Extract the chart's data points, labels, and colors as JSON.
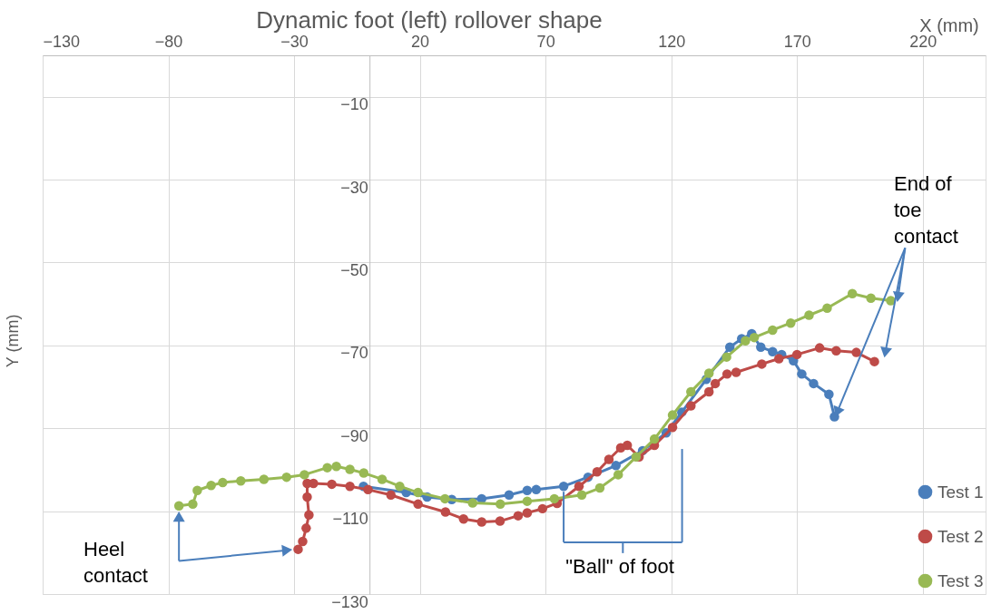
{
  "chart_data": {
    "type": "line",
    "title": "Dynamic foot (left) rollover shape",
    "xlabel": "X (mm)",
    "ylabel": "Y (mm)",
    "xlim": [
      -130,
      245
    ],
    "xticks": [
      -130,
      -80,
      -30,
      20,
      70,
      120,
      170,
      220
    ],
    "ylim": [
      -130,
      0
    ],
    "yticks": [
      -130,
      -110,
      -90,
      -70,
      -50,
      -30,
      -10
    ],
    "grid": true,
    "legend": "bottom right",
    "marker": "circle",
    "line_style": "solid",
    "annotations": [
      {
        "text": "End of toe contact",
        "x": 184.9,
        "y": -87.2
      },
      "Heel contact",
      {
        "text": "\"Ball\" of foot",
        "x": 77.2,
        "y": -104.0
      }
    ],
    "series": [
      {
        "name": "Test 1",
        "color": "#4a7ebb",
        "x": [
          -2.4,
          14.6,
          22.9,
          32.7,
          44.6,
          55.5,
          62.7,
          66.3,
          77.2,
          86.9,
          98.0,
          108.6,
          118.0,
          124.2,
          133.9,
          143.3,
          148.0,
          152.0,
          155.6,
          160.3,
          163.9,
          168.6,
          171.9,
          176.6,
          182.7,
          184.9
        ],
        "values": [
          -104.0,
          -105.5,
          -106.6,
          -107.2,
          -107.0,
          -106.1,
          -105.0,
          -104.8,
          -104.0,
          -101.8,
          -99.0,
          -95.4,
          -91.1,
          -86.1,
          -78.2,
          -70.4,
          -68.4,
          -67.2,
          -70.4,
          -71.5,
          -72.2,
          -73.7,
          -76.9,
          -79.2,
          -81.8,
          -87.2
        ]
      },
      {
        "name": "Test 2",
        "color": "#be4b48",
        "x": [
          -28.4,
          -26.6,
          -25.2,
          -24.1,
          -24.8,
          -24.8,
          -22.3,
          -15.0,
          -7.8,
          -0.6,
          8.5,
          19.3,
          30.2,
          37.4,
          44.6,
          51.9,
          59.1,
          62.7,
          68.8,
          74.6,
          83.3,
          90.5,
          95.2,
          99.9,
          102.5,
          107.2,
          113.3,
          120.5,
          127.8,
          135.0,
          137.5,
          142.2,
          145.8,
          156.0,
          162.8,
          170.0,
          179.0,
          185.6,
          193.6,
          200.8
        ],
        "values": [
          -119.2,
          -117.3,
          -114.1,
          -110.9,
          -106.6,
          -103.3,
          -103.3,
          -103.5,
          -104.0,
          -104.8,
          -106.1,
          -108.3,
          -110.2,
          -111.9,
          -112.6,
          -112.4,
          -111.1,
          -110.4,
          -109.4,
          -108.1,
          -104.0,
          -100.5,
          -97.5,
          -94.7,
          -94.1,
          -96.9,
          -94.1,
          -89.8,
          -84.6,
          -81.2,
          -79.2,
          -76.9,
          -76.5,
          -74.5,
          -73.2,
          -72.2,
          -70.6,
          -71.3,
          -71.7,
          -73.9
        ]
      },
      {
        "name": "Test 3",
        "color": "#98b954",
        "x": [
          -75.8,
          -70.3,
          -68.5,
          -63.0,
          -58.4,
          -51.2,
          -42.0,
          -33.0,
          -25.9,
          -16.8,
          -13.2,
          -7.8,
          -2.3,
          5.0,
          12.0,
          19.3,
          30.0,
          41.0,
          52.0,
          62.7,
          73.5,
          84.4,
          91.6,
          98.9,
          106.0,
          113.3,
          120.5,
          127.8,
          135.0,
          142.0,
          149.5,
          153.0,
          160.3,
          167.5,
          174.8,
          182.0,
          192.0,
          199.4,
          207.3
        ],
        "values": [
          -108.7,
          -108.3,
          -105.0,
          -103.8,
          -103.1,
          -102.7,
          -102.3,
          -101.8,
          -101.2,
          -99.5,
          -99.2,
          -99.9,
          -100.8,
          -102.3,
          -104.0,
          -105.5,
          -107.0,
          -108.0,
          -108.3,
          -107.6,
          -107.0,
          -106.1,
          -104.4,
          -101.2,
          -96.9,
          -92.6,
          -86.8,
          -81.2,
          -76.7,
          -72.8,
          -68.9,
          -68.1,
          -66.3,
          -64.6,
          -62.7,
          -61.0,
          -57.5,
          -58.6,
          -59.2
        ]
      }
    ]
  }
}
